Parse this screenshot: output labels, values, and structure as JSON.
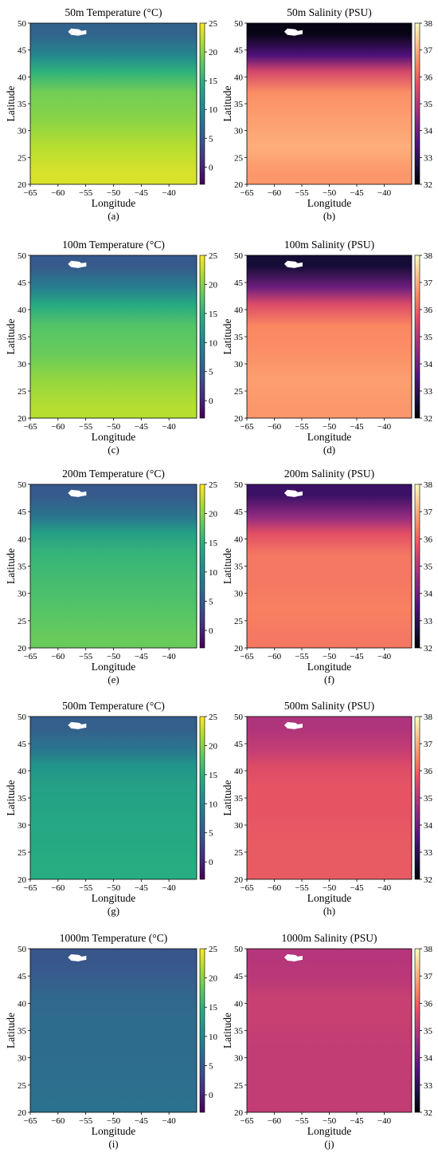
{
  "chart_data": [
    {
      "panel": "(a)",
      "type": "heatmap",
      "variable": "temperature",
      "depth_m": 50,
      "title": "50m Temperature (°C)",
      "xlabel": "Longitude",
      "ylabel": "Latitude",
      "xlim": [
        -65,
        -35
      ],
      "ylim": [
        20,
        50
      ],
      "clim": [
        -3,
        25
      ],
      "xticks": [
        -65,
        -60,
        -55,
        -50,
        -45,
        -40
      ],
      "yticks": [
        20,
        25,
        30,
        35,
        40,
        45,
        50
      ],
      "cticks": [
        0,
        5,
        10,
        15,
        20,
        25
      ],
      "colormap": "viridis",
      "profile": [
        {
          "lat": 48,
          "value": 6
        },
        {
          "lat": 44,
          "value": 10
        },
        {
          "lat": 41,
          "value": 15
        },
        {
          "lat": 37,
          "value": 19
        },
        {
          "lat": 32,
          "value": 20
        },
        {
          "lat": 27,
          "value": 22
        },
        {
          "lat": 22,
          "value": 23.5
        }
      ]
    },
    {
      "panel": "(b)",
      "type": "heatmap",
      "variable": "salinity",
      "depth_m": 50,
      "title": "50m Salinity (PSU)",
      "xlabel": "Longitude",
      "ylabel": "Latitude",
      "xlim": [
        -65,
        -35
      ],
      "ylim": [
        20,
        50
      ],
      "clim": [
        32,
        38
      ],
      "xticks": [
        -65,
        -60,
        -55,
        -50,
        -45,
        -40
      ],
      "yticks": [
        20,
        25,
        30,
        35,
        40,
        45,
        50
      ],
      "cticks": [
        32,
        33,
        34,
        35,
        36,
        37,
        38
      ],
      "colormap": "magma",
      "profile": [
        {
          "lat": 48,
          "value": 32.2
        },
        {
          "lat": 44,
          "value": 33.5
        },
        {
          "lat": 41,
          "value": 35.5
        },
        {
          "lat": 37,
          "value": 36.6
        },
        {
          "lat": 32,
          "value": 36.8
        },
        {
          "lat": 27,
          "value": 37.0
        },
        {
          "lat": 22,
          "value": 36.7
        }
      ]
    },
    {
      "panel": "(c)",
      "type": "heatmap",
      "variable": "temperature",
      "depth_m": 100,
      "title": "100m Temperature (°C)",
      "xlabel": "Longitude",
      "ylabel": "Latitude",
      "xlim": [
        -65,
        -35
      ],
      "ylim": [
        20,
        50
      ],
      "clim": [
        -3,
        25
      ],
      "xticks": [
        -65,
        -60,
        -55,
        -50,
        -45,
        -40
      ],
      "yticks": [
        20,
        25,
        30,
        35,
        40,
        45,
        50
      ],
      "cticks": [
        0,
        5,
        10,
        15,
        20,
        25
      ],
      "colormap": "viridis",
      "profile": [
        {
          "lat": 48,
          "value": 5
        },
        {
          "lat": 44,
          "value": 9
        },
        {
          "lat": 41,
          "value": 14
        },
        {
          "lat": 37,
          "value": 17.5
        },
        {
          "lat": 32,
          "value": 18.5
        },
        {
          "lat": 27,
          "value": 20.5
        },
        {
          "lat": 22,
          "value": 22
        }
      ]
    },
    {
      "panel": "(d)",
      "type": "heatmap",
      "variable": "salinity",
      "depth_m": 100,
      "title": "100m Salinity (PSU)",
      "xlabel": "Longitude",
      "ylabel": "Latitude",
      "xlim": [
        -65,
        -35
      ],
      "ylim": [
        20,
        50
      ],
      "clim": [
        32,
        38
      ],
      "xticks": [
        -65,
        -60,
        -55,
        -50,
        -45,
        -40
      ],
      "yticks": [
        20,
        25,
        30,
        35,
        40,
        45,
        50
      ],
      "cticks": [
        32,
        33,
        34,
        35,
        36,
        37,
        38
      ],
      "colormap": "magma",
      "profile": [
        {
          "lat": 48,
          "value": 32.6
        },
        {
          "lat": 44,
          "value": 34.0
        },
        {
          "lat": 41,
          "value": 35.6
        },
        {
          "lat": 37,
          "value": 36.5
        },
        {
          "lat": 32,
          "value": 36.6
        },
        {
          "lat": 27,
          "value": 36.8
        },
        {
          "lat": 22,
          "value": 36.7
        }
      ]
    },
    {
      "panel": "(e)",
      "type": "heatmap",
      "variable": "temperature",
      "depth_m": 200,
      "title": "200m Temperature (°C)",
      "xlabel": "Longitude",
      "ylabel": "Latitude",
      "xlim": [
        -65,
        -35
      ],
      "ylim": [
        20,
        50
      ],
      "clim": [
        -3,
        25
      ],
      "xticks": [
        -65,
        -60,
        -55,
        -50,
        -45,
        -40
      ],
      "yticks": [
        20,
        25,
        30,
        35,
        40,
        45,
        50
      ],
      "cticks": [
        0,
        5,
        10,
        15,
        20,
        25
      ],
      "colormap": "viridis",
      "profile": [
        {
          "lat": 48,
          "value": 5
        },
        {
          "lat": 44,
          "value": 8
        },
        {
          "lat": 41,
          "value": 13
        },
        {
          "lat": 37,
          "value": 15.5
        },
        {
          "lat": 32,
          "value": 16.5
        },
        {
          "lat": 27,
          "value": 17.5
        },
        {
          "lat": 22,
          "value": 18.5
        }
      ]
    },
    {
      "panel": "(f)",
      "type": "heatmap",
      "variable": "salinity",
      "depth_m": 200,
      "title": "200m Salinity (PSU)",
      "xlabel": "Longitude",
      "ylabel": "Latitude",
      "xlim": [
        -65,
        -35
      ],
      "ylim": [
        20,
        50
      ],
      "clim": [
        32,
        38
      ],
      "xticks": [
        -65,
        -60,
        -55,
        -50,
        -45,
        -40
      ],
      "yticks": [
        20,
        25,
        30,
        35,
        40,
        45,
        50
      ],
      "cticks": [
        32,
        33,
        34,
        35,
        36,
        37,
        38
      ],
      "colormap": "magma",
      "profile": [
        {
          "lat": 48,
          "value": 33.2
        },
        {
          "lat": 44,
          "value": 34.5
        },
        {
          "lat": 41,
          "value": 35.7
        },
        {
          "lat": 37,
          "value": 36.3
        },
        {
          "lat": 32,
          "value": 36.3
        },
        {
          "lat": 27,
          "value": 36.4
        },
        {
          "lat": 22,
          "value": 36.3
        }
      ]
    },
    {
      "panel": "(g)",
      "type": "heatmap",
      "variable": "temperature",
      "depth_m": 500,
      "title": "500m Temperature (°C)",
      "xlabel": "Longitude",
      "ylabel": "Latitude",
      "xlim": [
        -65,
        -35
      ],
      "ylim": [
        20,
        50
      ],
      "clim": [
        -3,
        25
      ],
      "xticks": [
        -65,
        -60,
        -55,
        -50,
        -45,
        -40
      ],
      "yticks": [
        20,
        25,
        30,
        35,
        40,
        45,
        50
      ],
      "cticks": [
        0,
        5,
        10,
        15,
        20,
        25
      ],
      "colormap": "viridis",
      "profile": [
        {
          "lat": 48,
          "value": 5.5
        },
        {
          "lat": 44,
          "value": 8
        },
        {
          "lat": 41,
          "value": 11.5
        },
        {
          "lat": 37,
          "value": 13
        },
        {
          "lat": 32,
          "value": 13.5
        },
        {
          "lat": 27,
          "value": 14
        },
        {
          "lat": 22,
          "value": 14.5
        }
      ]
    },
    {
      "panel": "(h)",
      "type": "heatmap",
      "variable": "salinity",
      "depth_m": 500,
      "title": "500m Salinity (PSU)",
      "xlabel": "Longitude",
      "ylabel": "Latitude",
      "xlim": [
        -65,
        -35
      ],
      "ylim": [
        20,
        50
      ],
      "clim": [
        32,
        38
      ],
      "xticks": [
        -65,
        -60,
        -55,
        -50,
        -45,
        -40
      ],
      "yticks": [
        20,
        25,
        30,
        35,
        40,
        45,
        50
      ],
      "cticks": [
        32,
        33,
        34,
        35,
        36,
        37,
        38
      ],
      "colormap": "magma",
      "profile": [
        {
          "lat": 48,
          "value": 34.9
        },
        {
          "lat": 44,
          "value": 35.2
        },
        {
          "lat": 41,
          "value": 35.6
        },
        {
          "lat": 37,
          "value": 35.8
        },
        {
          "lat": 32,
          "value": 35.8
        },
        {
          "lat": 27,
          "value": 35.9
        },
        {
          "lat": 22,
          "value": 35.9
        }
      ]
    },
    {
      "panel": "(i)",
      "type": "heatmap",
      "variable": "temperature",
      "depth_m": 1000,
      "title": "1000m Temperature (°C)",
      "xlabel": "Longitude",
      "ylabel": "Latitude",
      "xlim": [
        -65,
        -35
      ],
      "ylim": [
        20,
        50
      ],
      "clim": [
        -3,
        25
      ],
      "xticks": [
        -65,
        -60,
        -55,
        -50,
        -45,
        -40
      ],
      "yticks": [
        20,
        25,
        30,
        35,
        40,
        45,
        50
      ],
      "cticks": [
        0,
        5,
        10,
        15,
        20,
        25
      ],
      "colormap": "viridis",
      "profile": [
        {
          "lat": 48,
          "value": 4.5
        },
        {
          "lat": 44,
          "value": 5.5
        },
        {
          "lat": 41,
          "value": 6.5
        },
        {
          "lat": 37,
          "value": 7
        },
        {
          "lat": 32,
          "value": 7
        },
        {
          "lat": 27,
          "value": 7.2
        },
        {
          "lat": 22,
          "value": 7.5
        }
      ]
    },
    {
      "panel": "(j)",
      "type": "heatmap",
      "variable": "salinity",
      "depth_m": 1000,
      "title": "1000m Salinity (PSU)",
      "xlabel": "Longitude",
      "ylabel": "Latitude",
      "xlim": [
        -65,
        -35
      ],
      "ylim": [
        20,
        50
      ],
      "clim": [
        32,
        38
      ],
      "xticks": [
        -65,
        -60,
        -55,
        -50,
        -45,
        -40
      ],
      "yticks": [
        20,
        25,
        30,
        35,
        40,
        45,
        50
      ],
      "cticks": [
        32,
        33,
        34,
        35,
        36,
        37,
        38
      ],
      "colormap": "magma",
      "profile": [
        {
          "lat": 48,
          "value": 35.0
        },
        {
          "lat": 44,
          "value": 35.1
        },
        {
          "lat": 41,
          "value": 35.3
        },
        {
          "lat": 37,
          "value": 35.3
        },
        {
          "lat": 32,
          "value": 35.2
        },
        {
          "lat": 27,
          "value": 35.2
        },
        {
          "lat": 22,
          "value": 35.2
        }
      ]
    }
  ]
}
